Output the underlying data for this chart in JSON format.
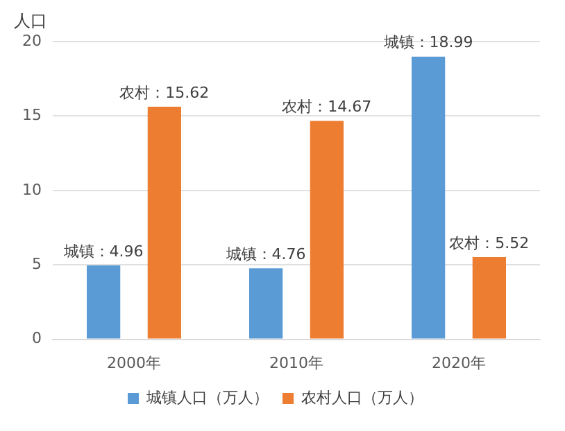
{
  "chart_data": {
    "type": "bar",
    "ylabel": "人口",
    "categories": [
      "2000年",
      "2010年",
      "2020年"
    ],
    "series": [
      {
        "name": "城镇人口（万人）",
        "color": "#5b9bd5",
        "values": [
          4.96,
          4.76,
          18.99
        ],
        "value_labels": [
          "城镇：4.96",
          "城镇：4.76",
          "城镇：18.99"
        ]
      },
      {
        "name": "农村人口（万人）",
        "color": "#ed7d31",
        "values": [
          15.62,
          14.67,
          5.52
        ],
        "value_labels": [
          "农村：15.62",
          "农村：14.67",
          "农村：5.52"
        ]
      }
    ],
    "ylim": [
      0,
      20
    ],
    "yticks": [
      0,
      5,
      10,
      15,
      20
    ],
    "grid": "y",
    "legend": "bottom"
  }
}
